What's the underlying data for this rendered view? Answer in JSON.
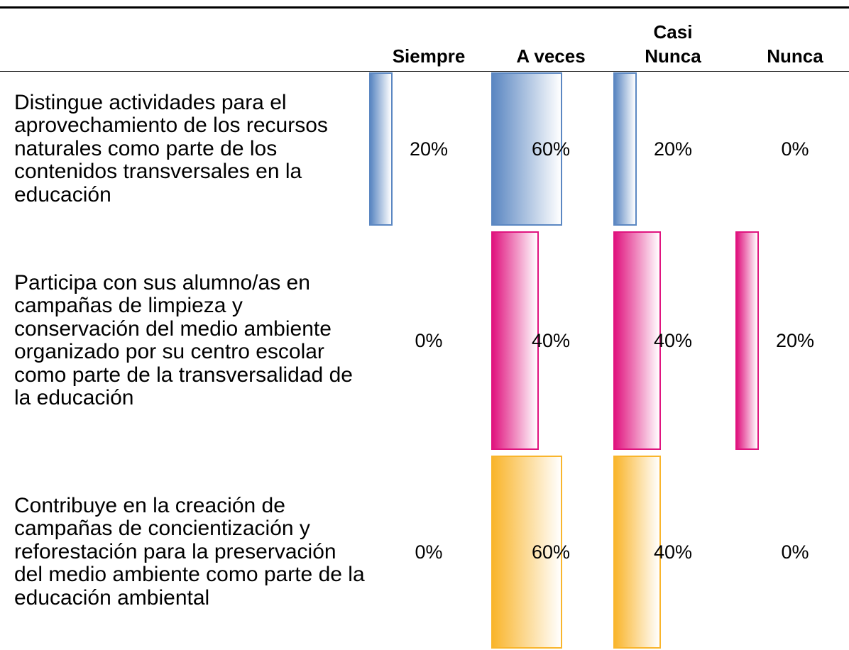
{
  "table": {
    "columns": [
      "Siempre",
      "A veces",
      "Casi Nunca",
      "Nunca"
    ],
    "rows": [
      {
        "label": "Distingue actividades para el aprovechamiento de los recursos naturales como parte de los contenidos transversales en la educación",
        "values": [
          20,
          60,
          20,
          0
        ],
        "value_labels": [
          "20%",
          "60%",
          "20%",
          "0%"
        ],
        "color": "#5b87c2"
      },
      {
        "label": "Participa con sus alumno/as en campañas de limpieza y conservación del medio ambiente organizado por su centro escolar como parte de la transversalidad de la educación",
        "values": [
          0,
          40,
          40,
          20
        ],
        "value_labels": [
          "0%",
          "40%",
          "40%",
          "20%"
        ],
        "color": "#e0147f"
      },
      {
        "label": "Contribuye en la creación de campañas de concientización y reforestación para la preservación del medio ambiente como parte de la educación ambiental",
        "values": [
          0,
          60,
          40,
          0
        ],
        "value_labels": [
          "0%",
          "60%",
          "40%",
          "0%"
        ],
        "color": "#f9b52c"
      }
    ]
  }
}
